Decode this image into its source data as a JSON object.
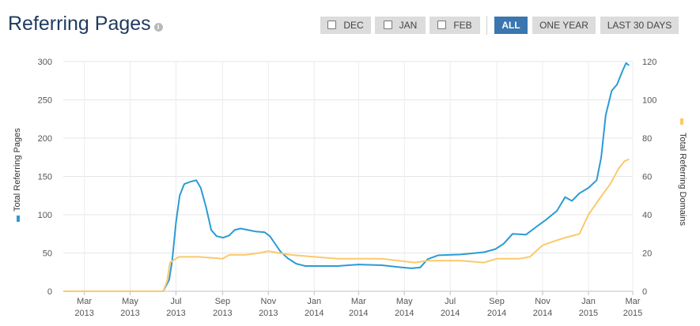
{
  "title": "Referring Pages",
  "info_icon": "i",
  "filters": {
    "dec": "DEC",
    "jan": "JAN",
    "feb": "FEB",
    "all": "ALL",
    "one_year": "ONE YEAR",
    "last_30_days": "LAST 30 DAYS"
  },
  "colors": {
    "pages": "#2b9bd6",
    "domains": "#fcc96a",
    "active_button": "#3a76b0",
    "title": "#1f3a5f"
  },
  "chart_data": {
    "type": "line",
    "ylabel": "Total Referring Pages",
    "y2label": "Total Referring Domains",
    "ylim": [
      0,
      300
    ],
    "y2lim": [
      0,
      120
    ],
    "yticks": [
      "0",
      "50",
      "100",
      "150",
      "200",
      "250",
      "300"
    ],
    "y2ticks": [
      "0",
      "20",
      "40",
      "60",
      "80",
      "100",
      "120"
    ],
    "xticks": [
      {
        "m": "Mar",
        "y": "2013"
      },
      {
        "m": "May",
        "y": "2013"
      },
      {
        "m": "Jul",
        "y": "2013"
      },
      {
        "m": "Sep",
        "y": "2013"
      },
      {
        "m": "Nov",
        "y": "2013"
      },
      {
        "m": "Jan",
        "y": "2014"
      },
      {
        "m": "Mar",
        "y": "2014"
      },
      {
        "m": "May",
        "y": "2014"
      },
      {
        "m": "Jul",
        "y": "2014"
      },
      {
        "m": "Sep",
        "y": "2014"
      },
      {
        "m": "Nov",
        "y": "2014"
      },
      {
        "m": "Jan",
        "y": "2015"
      },
      {
        "m": "Mar",
        "y": "2015"
      }
    ],
    "grid": true,
    "series": [
      {
        "name": "Total Referring Pages",
        "axis": "left",
        "points": [
          [
            "2013-02-01",
            0
          ],
          [
            "2013-06-14",
            0
          ],
          [
            "2013-06-22",
            15
          ],
          [
            "2013-06-26",
            40
          ],
          [
            "2013-07-01",
            90
          ],
          [
            "2013-07-06",
            125
          ],
          [
            "2013-07-12",
            140
          ],
          [
            "2013-07-20",
            143
          ],
          [
            "2013-07-28",
            145
          ],
          [
            "2013-08-03",
            135
          ],
          [
            "2013-08-10",
            110
          ],
          [
            "2013-08-17",
            80
          ],
          [
            "2013-08-24",
            72
          ],
          [
            "2013-09-02",
            70
          ],
          [
            "2013-09-10",
            73
          ],
          [
            "2013-09-17",
            80
          ],
          [
            "2013-09-25",
            82
          ],
          [
            "2013-10-05",
            80
          ],
          [
            "2013-10-15",
            78
          ],
          [
            "2013-10-27",
            77
          ],
          [
            "2013-11-03",
            72
          ],
          [
            "2013-11-10",
            62
          ],
          [
            "2013-11-17",
            52
          ],
          [
            "2013-11-27",
            43
          ],
          [
            "2013-12-08",
            36
          ],
          [
            "2013-12-20",
            33
          ],
          [
            "2014-01-10",
            33
          ],
          [
            "2014-02-01",
            33
          ],
          [
            "2014-03-01",
            35
          ],
          [
            "2014-04-01",
            34
          ],
          [
            "2014-04-20",
            32
          ],
          [
            "2014-05-10",
            30
          ],
          [
            "2014-05-22",
            31
          ],
          [
            "2014-06-01",
            42
          ],
          [
            "2014-06-15",
            47
          ],
          [
            "2014-07-15",
            48
          ],
          [
            "2014-08-15",
            51
          ],
          [
            "2014-08-30",
            55
          ],
          [
            "2014-09-10",
            62
          ],
          [
            "2014-09-22",
            75
          ],
          [
            "2014-10-10",
            74
          ],
          [
            "2014-10-22",
            83
          ],
          [
            "2014-11-05",
            93
          ],
          [
            "2014-11-20",
            105
          ],
          [
            "2014-12-01",
            123
          ],
          [
            "2014-12-10",
            118
          ],
          [
            "2014-12-20",
            128
          ],
          [
            "2015-01-01",
            135
          ],
          [
            "2015-01-12",
            145
          ],
          [
            "2015-01-18",
            175
          ],
          [
            "2015-01-24",
            230
          ],
          [
            "2015-02-01",
            262
          ],
          [
            "2015-02-08",
            270
          ],
          [
            "2015-02-15",
            287
          ],
          [
            "2015-02-20",
            298
          ],
          [
            "2015-02-24",
            295
          ]
        ]
      },
      {
        "name": "Total Referring Domains",
        "axis": "right",
        "points": [
          [
            "2013-02-01",
            0
          ],
          [
            "2013-06-14",
            0
          ],
          [
            "2013-06-19",
            5
          ],
          [
            "2013-06-23",
            15
          ],
          [
            "2013-07-05",
            18
          ],
          [
            "2013-08-01",
            18
          ],
          [
            "2013-09-01",
            17
          ],
          [
            "2013-09-10",
            19
          ],
          [
            "2013-10-01",
            19
          ],
          [
            "2013-10-20",
            20
          ],
          [
            "2013-11-01",
            21
          ],
          [
            "2013-11-15",
            20
          ],
          [
            "2013-12-01",
            19
          ],
          [
            "2014-01-01",
            18
          ],
          [
            "2014-02-01",
            17
          ],
          [
            "2014-03-01",
            17
          ],
          [
            "2014-04-01",
            17
          ],
          [
            "2014-05-15",
            15
          ],
          [
            "2014-06-01",
            16
          ],
          [
            "2014-07-15",
            16
          ],
          [
            "2014-08-15",
            15
          ],
          [
            "2014-09-01",
            17
          ],
          [
            "2014-10-01",
            17
          ],
          [
            "2014-10-15",
            18
          ],
          [
            "2014-11-01",
            24
          ],
          [
            "2014-11-15",
            26
          ],
          [
            "2014-12-01",
            28
          ],
          [
            "2014-12-20",
            30
          ],
          [
            "2015-01-01",
            40
          ],
          [
            "2015-01-15",
            48
          ],
          [
            "2015-01-30",
            56
          ],
          [
            "2015-02-10",
            64
          ],
          [
            "2015-02-18",
            68
          ],
          [
            "2015-02-24",
            69
          ]
        ]
      }
    ]
  }
}
